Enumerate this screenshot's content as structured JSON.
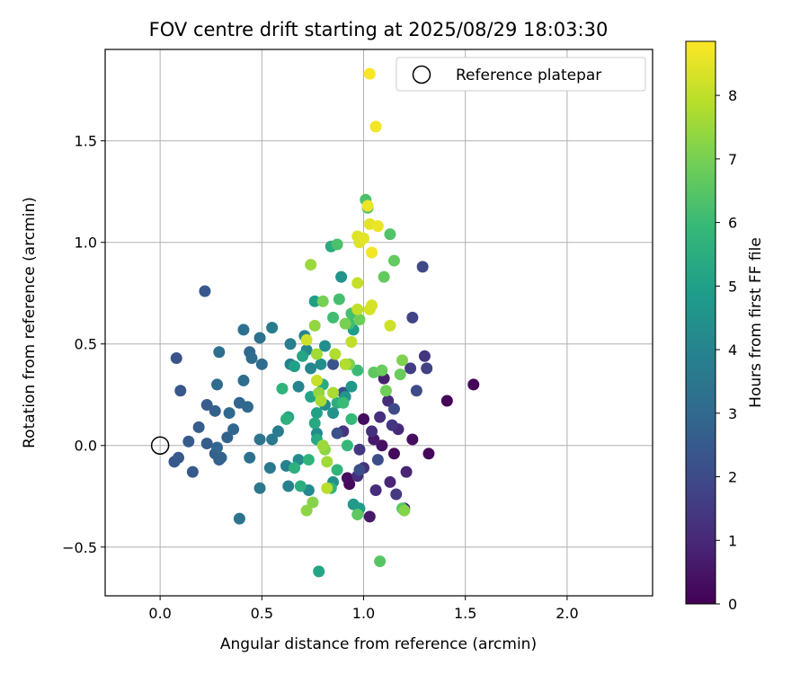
{
  "chart_data": {
    "type": "scatter",
    "title": "FOV centre drift starting at 2025/08/29 18:03:30",
    "xlabel": "Angular distance from reference (arcmin)",
    "ylabel": "Rotation from reference (arcmin)",
    "xlim": [
      -0.27,
      2.42
    ],
    "ylim": [
      -0.74,
      1.95
    ],
    "xticks": [
      0.0,
      0.5,
      1.0,
      1.5,
      2.0
    ],
    "xtick_labels": [
      "0.0",
      "0.5",
      "1.0",
      "1.5",
      "2.0"
    ],
    "yticks": [
      -0.5,
      0.0,
      0.5,
      1.0,
      1.5
    ],
    "ytick_labels": [
      "−0.5",
      "0.0",
      "0.5",
      "1.0",
      "1.5"
    ],
    "grid": true,
    "legend": {
      "position": "upper-right",
      "entries": [
        "Reference platepar"
      ]
    },
    "reference_point": {
      "label": "Reference platepar",
      "x": 0.0,
      "y": 0.0
    },
    "colorbar": {
      "label": "Hours from first FF file",
      "colormap": "viridis",
      "range": [
        0,
        8.85
      ],
      "ticks": [
        0,
        1,
        2,
        3,
        4,
        5,
        6,
        7,
        8
      ],
      "tick_labels": [
        "0",
        "1",
        "2",
        "3",
        "4",
        "5",
        "6",
        "7",
        "8"
      ]
    },
    "series": [
      {
        "color_by": "hours",
        "points": [
          {
            "x": 1.54,
            "y": 0.3,
            "h": 0.1
          },
          {
            "x": 1.41,
            "y": 0.22,
            "h": 0.1
          },
          {
            "x": 1.32,
            "y": -0.04,
            "h": 0.2
          },
          {
            "x": 1.24,
            "y": 0.03,
            "h": 0.3
          },
          {
            "x": 1.2,
            "y": -0.31,
            "h": 0.5
          },
          {
            "x": 1.15,
            "y": -0.04,
            "h": 0.2
          },
          {
            "x": 1.09,
            "y": 0.0,
            "h": 0.4
          },
          {
            "x": 1.03,
            "y": -0.35,
            "h": 0.6
          },
          {
            "x": 1.0,
            "y": 0.13,
            "h": 0.3
          },
          {
            "x": 0.93,
            "y": -0.19,
            "h": 0.2
          },
          {
            "x": 0.92,
            "y": -0.16,
            "h": 0.3
          },
          {
            "x": 1.05,
            "y": 0.03,
            "h": 0.6
          },
          {
            "x": 1.1,
            "y": 0.33,
            "h": 0.8
          },
          {
            "x": 1.13,
            "y": -0.18,
            "h": 0.9
          },
          {
            "x": 1.17,
            "y": 0.08,
            "h": 1.0
          },
          {
            "x": 1.06,
            "y": -0.22,
            "h": 1.1
          },
          {
            "x": 1.21,
            "y": -0.13,
            "h": 0.9
          },
          {
            "x": 1.08,
            "y": 0.14,
            "h": 1.2
          },
          {
            "x": 1.12,
            "y": 0.22,
            "h": 1.1
          },
          {
            "x": 0.97,
            "y": -0.15,
            "h": 1.2
          },
          {
            "x": 1.04,
            "y": 0.07,
            "h": 1.2
          },
          {
            "x": 1.0,
            "y": -0.11,
            "h": 1.3
          },
          {
            "x": 1.14,
            "y": 0.1,
            "h": 1.4
          },
          {
            "x": 0.9,
            "y": 0.07,
            "h": 1.3
          },
          {
            "x": 0.98,
            "y": -0.02,
            "h": 1.4
          },
          {
            "x": 1.16,
            "y": -0.24,
            "h": 1.5
          },
          {
            "x": 1.23,
            "y": 0.38,
            "h": 1.6
          },
          {
            "x": 1.3,
            "y": 0.44,
            "h": 1.4
          },
          {
            "x": 1.31,
            "y": 0.38,
            "h": 1.7
          },
          {
            "x": 1.24,
            "y": 0.63,
            "h": 1.8
          },
          {
            "x": 1.29,
            "y": 0.88,
            "h": 1.9
          },
          {
            "x": 1.26,
            "y": 0.27,
            "h": 2.0
          },
          {
            "x": 1.15,
            "y": 0.18,
            "h": 2.0
          },
          {
            "x": 1.07,
            "y": -0.07,
            "h": 2.1
          },
          {
            "x": 0.98,
            "y": -0.12,
            "h": 2.1
          },
          {
            "x": 0.9,
            "y": 0.26,
            "h": 2.2
          },
          {
            "x": 0.87,
            "y": 0.06,
            "h": 2.2
          },
          {
            "x": 0.85,
            "y": 0.4,
            "h": 2.3
          },
          {
            "x": 0.08,
            "y": 0.43,
            "h": 2.3
          },
          {
            "x": 0.1,
            "y": 0.27,
            "h": 2.4
          },
          {
            "x": 0.22,
            "y": 0.76,
            "h": 2.4
          },
          {
            "x": 0.07,
            "y": -0.08,
            "h": 2.4
          },
          {
            "x": 0.16,
            "y": -0.13,
            "h": 2.5
          },
          {
            "x": 0.09,
            "y": -0.06,
            "h": 2.5
          },
          {
            "x": 0.14,
            "y": 0.02,
            "h": 2.5
          },
          {
            "x": 0.19,
            "y": 0.09,
            "h": 2.6
          },
          {
            "x": 0.23,
            "y": 0.2,
            "h": 2.6
          },
          {
            "x": 0.27,
            "y": 0.17,
            "h": 2.7
          },
          {
            "x": 0.23,
            "y": 0.01,
            "h": 2.6
          },
          {
            "x": 0.27,
            "y": -0.04,
            "h": 2.7
          },
          {
            "x": 0.29,
            "y": -0.07,
            "h": 2.7
          },
          {
            "x": 0.3,
            "y": -0.06,
            "h": 2.8
          },
          {
            "x": 0.33,
            "y": 0.04,
            "h": 2.8
          },
          {
            "x": 0.28,
            "y": -0.01,
            "h": 2.9
          },
          {
            "x": 0.36,
            "y": 0.08,
            "h": 2.9
          },
          {
            "x": 0.34,
            "y": 0.16,
            "h": 3.0
          },
          {
            "x": 0.39,
            "y": 0.21,
            "h": 2.9
          },
          {
            "x": 0.43,
            "y": 0.19,
            "h": 3.0
          },
          {
            "x": 0.44,
            "y": 0.46,
            "h": 3.0
          },
          {
            "x": 0.45,
            "y": 0.43,
            "h": 3.1
          },
          {
            "x": 0.5,
            "y": 0.4,
            "h": 3.1
          },
          {
            "x": 0.41,
            "y": 0.32,
            "h": 3.2
          },
          {
            "x": 0.29,
            "y": 0.46,
            "h": 3.2
          },
          {
            "x": 0.41,
            "y": 0.57,
            "h": 3.3
          },
          {
            "x": 0.49,
            "y": 0.53,
            "h": 3.3
          },
          {
            "x": 0.28,
            "y": 0.3,
            "h": 3.1
          },
          {
            "x": 0.39,
            "y": -0.36,
            "h": 3.4
          },
          {
            "x": 0.44,
            "y": -0.06,
            "h": 3.3
          },
          {
            "x": 0.49,
            "y": 0.03,
            "h": 3.4
          },
          {
            "x": 0.49,
            "y": -0.21,
            "h": 3.5
          },
          {
            "x": 0.54,
            "y": -0.11,
            "h": 3.6
          },
          {
            "x": 0.55,
            "y": 0.03,
            "h": 3.6
          },
          {
            "x": 0.58,
            "y": 0.07,
            "h": 3.7
          },
          {
            "x": 0.55,
            "y": 0.58,
            "h": 3.7
          },
          {
            "x": 0.64,
            "y": 0.5,
            "h": 3.8
          },
          {
            "x": 0.64,
            "y": 0.4,
            "h": 3.8
          },
          {
            "x": 0.62,
            "y": -0.1,
            "h": 3.9
          },
          {
            "x": 0.63,
            "y": -0.2,
            "h": 3.9
          },
          {
            "x": 0.68,
            "y": 0.29,
            "h": 4.0
          },
          {
            "x": 0.71,
            "y": 0.54,
            "h": 4.0
          },
          {
            "x": 0.72,
            "y": 0.47,
            "h": 4.1
          },
          {
            "x": 0.74,
            "y": 0.38,
            "h": 4.1
          },
          {
            "x": 0.68,
            "y": -0.07,
            "h": 4.2
          },
          {
            "x": 0.73,
            "y": -0.22,
            "h": 4.2
          },
          {
            "x": 0.77,
            "y": 0.06,
            "h": 4.3
          },
          {
            "x": 0.81,
            "y": 0.2,
            "h": 4.3
          },
          {
            "x": 0.79,
            "y": 0.4,
            "h": 4.4
          },
          {
            "x": 0.81,
            "y": 0.49,
            "h": 4.4
          },
          {
            "x": 0.85,
            "y": 0.16,
            "h": 4.5
          },
          {
            "x": 0.85,
            "y": -0.18,
            "h": 4.5
          },
          {
            "x": 0.89,
            "y": 0.83,
            "h": 4.6
          },
          {
            "x": 0.91,
            "y": 0.24,
            "h": 4.6
          },
          {
            "x": 0.94,
            "y": 0.29,
            "h": 4.7
          },
          {
            "x": 0.95,
            "y": -0.29,
            "h": 4.7
          },
          {
            "x": 0.98,
            "y": -0.31,
            "h": 4.8
          },
          {
            "x": 0.95,
            "y": 0.57,
            "h": 4.9
          },
          {
            "x": 0.76,
            "y": 0.71,
            "h": 4.9
          },
          {
            "x": 0.77,
            "y": 0.16,
            "h": 5.0
          },
          {
            "x": 0.66,
            "y": 0.39,
            "h": 5.0
          },
          {
            "x": 0.74,
            "y": 0.24,
            "h": 5.1
          },
          {
            "x": 0.63,
            "y": 0.14,
            "h": 5.1
          },
          {
            "x": 0.7,
            "y": 0.44,
            "h": 5.2
          },
          {
            "x": 0.78,
            "y": -0.62,
            "h": 5.2
          },
          {
            "x": 0.76,
            "y": 0.11,
            "h": 5.3
          },
          {
            "x": 0.77,
            "y": 0.03,
            "h": 5.3
          },
          {
            "x": 0.84,
            "y": 0.98,
            "h": 5.4
          },
          {
            "x": 0.8,
            "y": 0.3,
            "h": 5.4
          },
          {
            "x": 0.87,
            "y": 0.21,
            "h": 5.5
          },
          {
            "x": 0.69,
            "y": -0.2,
            "h": 5.5
          },
          {
            "x": 0.66,
            "y": -0.11,
            "h": 5.6
          },
          {
            "x": 0.62,
            "y": 0.13,
            "h": 5.6
          },
          {
            "x": 0.6,
            "y": 0.28,
            "h": 5.7
          },
          {
            "x": 0.73,
            "y": -0.07,
            "h": 5.7
          },
          {
            "x": 0.84,
            "y": -0.21,
            "h": 5.8
          },
          {
            "x": 0.87,
            "y": -0.12,
            "h": 5.8
          },
          {
            "x": 0.92,
            "y": 0.0,
            "h": 5.9
          },
          {
            "x": 0.94,
            "y": 0.13,
            "h": 5.9
          },
          {
            "x": 0.9,
            "y": 0.21,
            "h": 6.0
          },
          {
            "x": 0.97,
            "y": 0.37,
            "h": 6.0
          },
          {
            "x": 0.85,
            "y": 0.63,
            "h": 6.1
          },
          {
            "x": 0.93,
            "y": 0.6,
            "h": 6.1
          },
          {
            "x": 0.88,
            "y": 0.72,
            "h": 6.2
          },
          {
            "x": 0.94,
            "y": 0.65,
            "h": 6.2
          },
          {
            "x": 0.87,
            "y": 0.99,
            "h": 6.3
          },
          {
            "x": 1.01,
            "y": 1.21,
            "h": 6.3
          },
          {
            "x": 1.02,
            "y": 1.17,
            "h": 6.4
          },
          {
            "x": 1.13,
            "y": 1.04,
            "h": 6.4
          },
          {
            "x": 1.08,
            "y": -0.57,
            "h": 6.5
          },
          {
            "x": 1.19,
            "y": -0.31,
            "h": 6.5
          },
          {
            "x": 0.97,
            "y": -0.34,
            "h": 6.6
          },
          {
            "x": 1.05,
            "y": 0.36,
            "h": 6.6
          },
          {
            "x": 1.1,
            "y": 0.83,
            "h": 6.7
          },
          {
            "x": 1.15,
            "y": 0.91,
            "h": 6.7
          },
          {
            "x": 1.18,
            "y": 0.35,
            "h": 6.8
          },
          {
            "x": 1.09,
            "y": 0.37,
            "h": 6.8
          },
          {
            "x": 1.11,
            "y": 0.27,
            "h": 6.9
          },
          {
            "x": 0.98,
            "y": 0.62,
            "h": 6.9
          },
          {
            "x": 0.8,
            "y": 0.71,
            "h": 7.0
          },
          {
            "x": 0.91,
            "y": 0.6,
            "h": 7.0
          },
          {
            "x": 1.19,
            "y": 0.42,
            "h": 7.1
          },
          {
            "x": 0.93,
            "y": 0.4,
            "h": 7.1
          },
          {
            "x": 1.2,
            "y": -0.32,
            "h": 7.2
          },
          {
            "x": 0.75,
            "y": -0.28,
            "h": 7.2
          },
          {
            "x": 0.72,
            "y": -0.32,
            "h": 7.3
          },
          {
            "x": 0.81,
            "y": -0.02,
            "h": 7.3
          },
          {
            "x": 0.78,
            "y": 0.26,
            "h": 7.4
          },
          {
            "x": 0.76,
            "y": 0.59,
            "h": 7.4
          },
          {
            "x": 0.74,
            "y": 0.89,
            "h": 7.5
          },
          {
            "x": 0.8,
            "y": 0.0,
            "h": 7.5
          },
          {
            "x": 0.82,
            "y": -0.08,
            "h": 7.6
          },
          {
            "x": 0.77,
            "y": 0.45,
            "h": 7.6
          },
          {
            "x": 0.79,
            "y": 0.22,
            "h": 7.7
          },
          {
            "x": 0.85,
            "y": 0.26,
            "h": 7.7
          },
          {
            "x": 0.86,
            "y": 0.45,
            "h": 7.8
          },
          {
            "x": 0.91,
            "y": 0.4,
            "h": 7.8
          },
          {
            "x": 0.82,
            "y": -0.21,
            "h": 7.9
          },
          {
            "x": 0.97,
            "y": 0.67,
            "h": 8.0
          },
          {
            "x": 0.94,
            "y": 0.51,
            "h": 8.0
          },
          {
            "x": 0.97,
            "y": 0.8,
            "h": 8.1
          },
          {
            "x": 0.77,
            "y": 0.32,
            "h": 8.1
          },
          {
            "x": 0.72,
            "y": 0.52,
            "h": 8.2
          },
          {
            "x": 1.13,
            "y": 0.59,
            "h": 8.2
          },
          {
            "x": 1.03,
            "y": 0.67,
            "h": 8.3
          },
          {
            "x": 1.04,
            "y": 0.69,
            "h": 8.3
          },
          {
            "x": 0.98,
            "y": 1.0,
            "h": 8.4
          },
          {
            "x": 0.97,
            "y": 1.03,
            "h": 8.4
          },
          {
            "x": 1.0,
            "y": 1.02,
            "h": 8.5
          },
          {
            "x": 1.03,
            "y": 1.09,
            "h": 8.5
          },
          {
            "x": 1.07,
            "y": 1.08,
            "h": 8.6
          },
          {
            "x": 1.02,
            "y": 1.18,
            "h": 8.6
          },
          {
            "x": 1.04,
            "y": 0.95,
            "h": 8.7
          },
          {
            "x": 1.06,
            "y": 1.57,
            "h": 8.7
          },
          {
            "x": 1.03,
            "y": 1.83,
            "h": 8.8
          }
        ]
      }
    ]
  }
}
